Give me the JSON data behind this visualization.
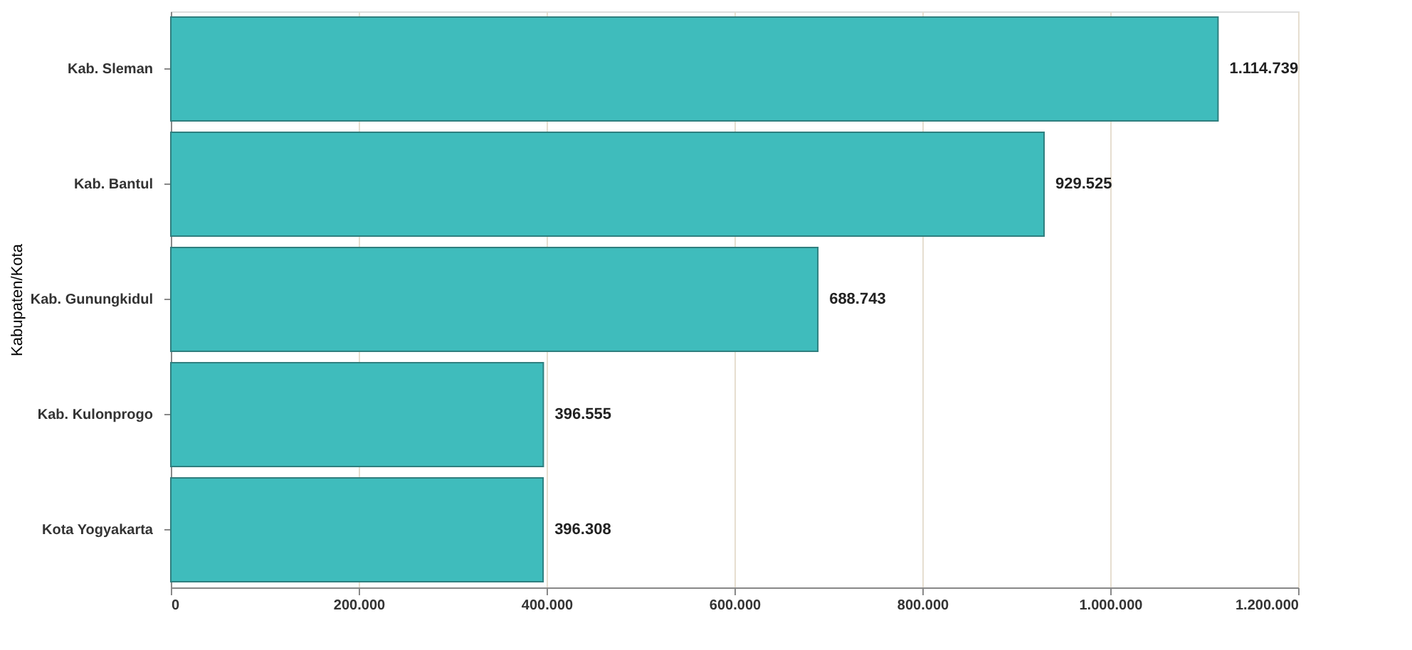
{
  "chart_data": {
    "type": "bar",
    "orientation": "horizontal",
    "ylabel": "Kabupaten/Kota",
    "categories": [
      "Kab. Sleman",
      "Kab. Bantul",
      "Kab. Gunungkidul",
      "Kab. Kulonprogo",
      "Kota Yogyakarta"
    ],
    "values": [
      1114739,
      929525,
      688743,
      396555,
      396308
    ],
    "value_labels": [
      "1.114.739",
      "929.525",
      "688.743",
      "396.555",
      "396.308"
    ],
    "color": "#3fbcbc",
    "xlim": [
      0,
      1200000
    ],
    "xticks": [
      0,
      {
        "value": 200000,
        "label": "200.000"
      },
      {
        "value": 400000,
        "label": "400.000"
      },
      {
        "value": 600000,
        "label": "600.000"
      },
      {
        "value": 800000,
        "label": "800.000"
      },
      {
        "value": 1000000,
        "label": "1.000.000"
      },
      {
        "value": 1200000,
        "label": "1.200.000"
      }
    ],
    "grid": "x"
  }
}
